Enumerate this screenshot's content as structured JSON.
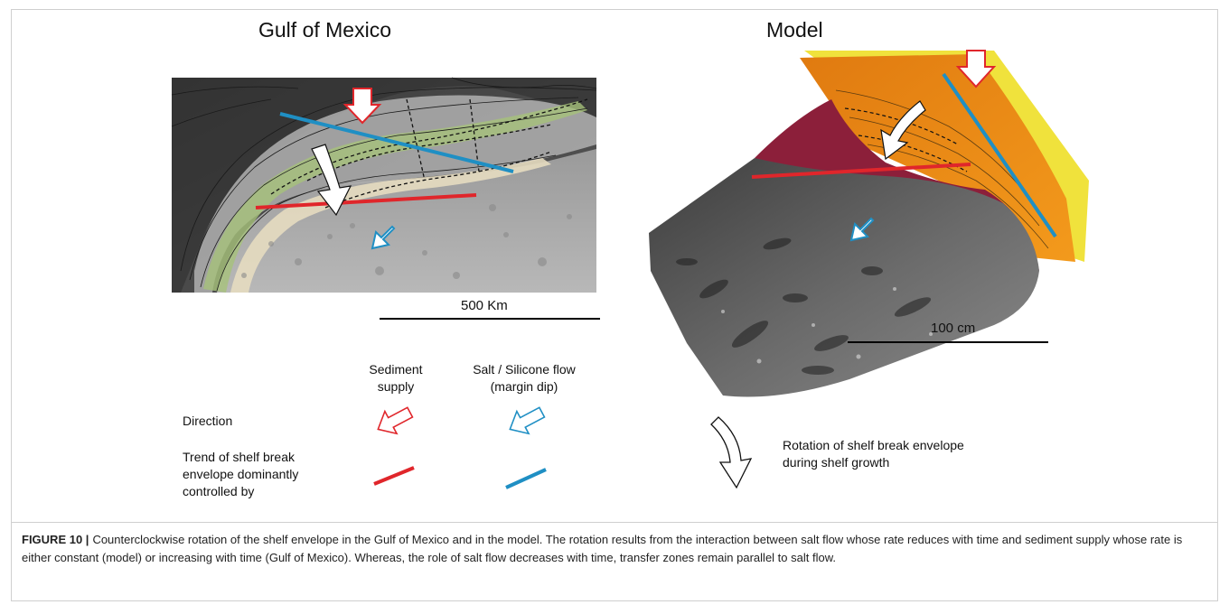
{
  "panels": {
    "left_title": "Gulf of Mexico",
    "right_title": "Model",
    "left_scale": "500 Km",
    "right_scale": "100 cm"
  },
  "legend": {
    "col_sediment": "Sediment\nsupply",
    "col_salt": "Salt / Silicone flow\n(margin dip)",
    "row_direction": "Direction",
    "row_trend": "Trend of shelf break\nenvelope dominantly\ncontrolled by",
    "rotation_note": "Rotation of shelf break envelope\nduring shelf growth",
    "colors": {
      "sediment": "#e0262b",
      "salt": "#1f8fc4"
    }
  },
  "caption": {
    "label": "FIGURE 10 |",
    "text": "Counterclockwise rotation of the shelf envelope in the Gulf of Mexico and in the model. The rotation results from the interaction between salt flow whose rate reduces with time and sediment supply whose rate is either constant (model) or increasing with time (Gulf of Mexico). Whereas, the role of salt flow decreases with time, transfer zones remain parallel to salt flow."
  }
}
